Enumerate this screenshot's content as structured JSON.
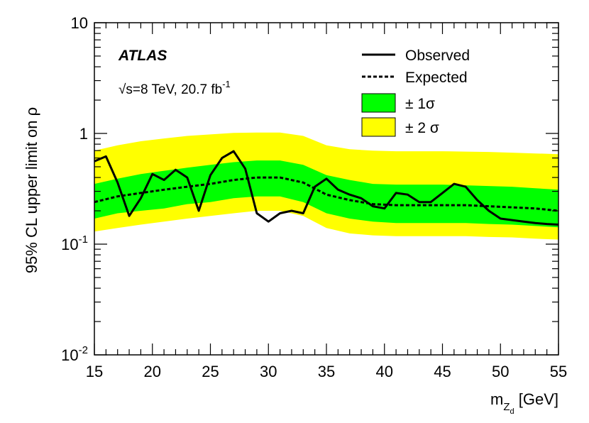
{
  "chart_data": {
    "type": "line",
    "experiment_label": "ATLAS",
    "energy_label_prefix": "√s=8 TeV, 20.7 fb",
    "energy_label_sup": "-1",
    "ylabel": "95% CL upper limit on ρ",
    "xlabel_main": "m",
    "xlabel_sub": "Z",
    "xlabel_subsub": "d",
    "xlabel_unit": " [GeV]",
    "xlim": [
      15,
      55
    ],
    "ylim": [
      0.01,
      10
    ],
    "yscale": "log",
    "x_ticks": [
      15,
      20,
      25,
      30,
      35,
      40,
      45,
      50,
      55
    ],
    "y_ticks": [
      {
        "value": 0.01,
        "base": "10",
        "exp": "-2"
      },
      {
        "value": 0.1,
        "base": "10",
        "exp": "-1"
      },
      {
        "value": 1,
        "base": "1",
        "exp": ""
      },
      {
        "value": 10,
        "base": "10",
        "exp": ""
      }
    ],
    "legend": {
      "placement": "top-right",
      "observed": "Observed",
      "expected": "Expected",
      "band1": "± 1σ",
      "band2": "± 2 σ"
    },
    "colors": {
      "band1": "#00ff00",
      "band2": "#ffff00",
      "line": "#000000"
    },
    "observed": {
      "x": [
        15,
        16,
        17,
        18,
        19,
        20,
        21,
        22,
        23,
        24,
        25,
        26,
        27,
        28,
        29,
        30,
        31,
        32,
        33,
        34,
        35,
        36,
        37,
        38,
        39,
        40,
        41,
        42,
        43,
        44,
        45,
        46,
        47,
        48,
        49,
        50,
        51,
        52,
        53,
        54,
        55
      ],
      "y": [
        0.56,
        0.62,
        0.36,
        0.18,
        0.26,
        0.43,
        0.38,
        0.47,
        0.4,
        0.2,
        0.42,
        0.6,
        0.69,
        0.48,
        0.19,
        0.16,
        0.19,
        0.2,
        0.19,
        0.33,
        0.39,
        0.31,
        0.28,
        0.26,
        0.22,
        0.21,
        0.29,
        0.28,
        0.24,
        0.24,
        0.29,
        0.35,
        0.33,
        0.25,
        0.2,
        0.17,
        0.165,
        0.16,
        0.155,
        0.152,
        0.15
      ]
    },
    "expected": {
      "x": [
        15,
        17,
        19,
        21,
        23,
        25,
        27,
        29,
        31,
        33,
        35,
        37,
        39,
        41,
        43,
        45,
        47,
        49,
        51,
        53,
        55
      ],
      "y": [
        0.24,
        0.27,
        0.29,
        0.31,
        0.33,
        0.35,
        0.38,
        0.4,
        0.4,
        0.36,
        0.28,
        0.25,
        0.23,
        0.225,
        0.225,
        0.225,
        0.225,
        0.22,
        0.215,
        0.21,
        0.2
      ]
    },
    "band_1sigma": {
      "x": [
        15,
        17,
        19,
        21,
        23,
        25,
        27,
        29,
        31,
        33,
        35,
        37,
        39,
        41,
        43,
        45,
        47,
        49,
        51,
        53,
        55
      ],
      "low": [
        0.17,
        0.19,
        0.2,
        0.21,
        0.23,
        0.24,
        0.26,
        0.27,
        0.27,
        0.24,
        0.19,
        0.17,
        0.16,
        0.155,
        0.155,
        0.155,
        0.155,
        0.152,
        0.15,
        0.146,
        0.142
      ],
      "high": [
        0.35,
        0.39,
        0.43,
        0.46,
        0.49,
        0.52,
        0.55,
        0.57,
        0.57,
        0.52,
        0.42,
        0.38,
        0.35,
        0.345,
        0.345,
        0.345,
        0.34,
        0.335,
        0.33,
        0.32,
        0.31
      ]
    },
    "band_2sigma": {
      "x": [
        15,
        17,
        19,
        21,
        23,
        25,
        27,
        29,
        31,
        33,
        35,
        37,
        39,
        41,
        43,
        45,
        47,
        49,
        51,
        53,
        55
      ],
      "low": [
        0.13,
        0.14,
        0.15,
        0.16,
        0.17,
        0.18,
        0.19,
        0.2,
        0.2,
        0.18,
        0.14,
        0.125,
        0.12,
        0.118,
        0.118,
        0.118,
        0.118,
        0.116,
        0.115,
        0.112,
        0.11
      ],
      "high": [
        0.7,
        0.78,
        0.85,
        0.9,
        0.95,
        0.98,
        1.01,
        1.02,
        1.02,
        0.95,
        0.78,
        0.72,
        0.7,
        0.69,
        0.69,
        0.69,
        0.685,
        0.68,
        0.67,
        0.66,
        0.65
      ]
    }
  }
}
